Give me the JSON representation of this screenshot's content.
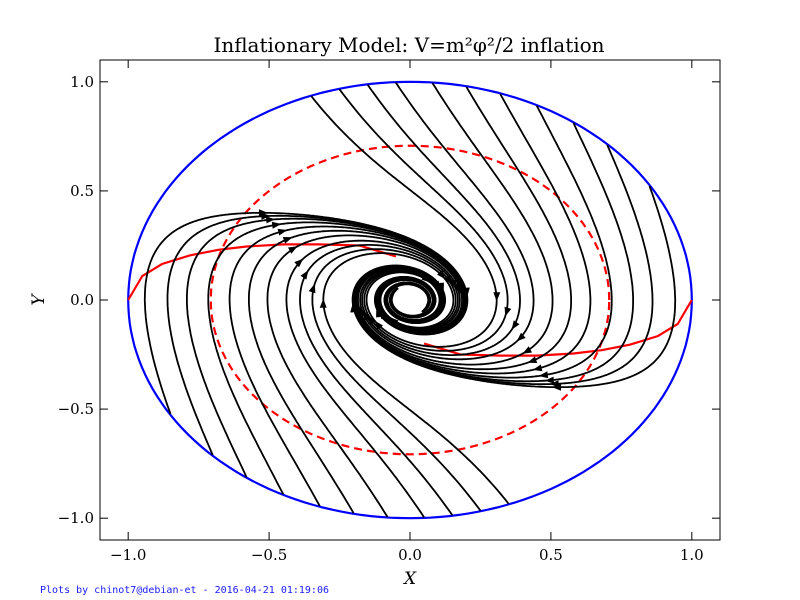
{
  "chart_data": {
    "type": "line",
    "title": "Inflationary Model: V=m²φ²/2 inflation",
    "xlabel": "X",
    "ylabel": "Y",
    "xlim": [
      -1.1,
      1.1
    ],
    "ylim": [
      -1.1,
      1.1
    ],
    "xticks": [
      -1.0,
      -0.5,
      0.0,
      0.5,
      1.0
    ],
    "yticks": [
      -1.0,
      -0.5,
      0.0,
      0.5,
      1.0
    ],
    "xtick_labels": [
      "−1.0",
      "−0.5",
      "0.0",
      "0.5",
      "1.0"
    ],
    "ytick_labels": [
      "−1.0",
      "−0.5",
      "0.0",
      "0.5",
      "1.0"
    ],
    "grid": false,
    "series": [
      {
        "kind": "boundary-circle",
        "color": "#0000ff",
        "style": "solid",
        "radius": 1.0
      },
      {
        "kind": "dashed-circle",
        "color": "#ff0000",
        "style": "dashed",
        "radius": 0.707
      },
      {
        "kind": "attractor-upper-left",
        "color": "#ff0000",
        "style": "solid",
        "x": [
          -1.0,
          -0.95,
          -0.88,
          -0.78,
          -0.68,
          -0.58,
          -0.45,
          -0.32,
          -0.18,
          -0.05
        ],
        "y": [
          0.0,
          0.11,
          0.165,
          0.205,
          0.23,
          0.245,
          0.255,
          0.255,
          0.25,
          0.2
        ]
      },
      {
        "kind": "attractor-lower-right",
        "color": "#ff0000",
        "style": "solid",
        "x": [
          1.0,
          0.95,
          0.88,
          0.78,
          0.68,
          0.58,
          0.45,
          0.32,
          0.18,
          0.05
        ],
        "y": [
          0.0,
          -0.11,
          -0.165,
          -0.205,
          -0.23,
          -0.245,
          -0.255,
          -0.255,
          -0.25,
          -0.2
        ]
      }
    ],
    "trajectory_colors": "#000000",
    "trajectories_top_start": [
      -0.35,
      -0.25,
      -0.15,
      -0.05,
      0.08,
      0.2,
      0.32,
      0.45,
      0.58,
      0.7,
      0.85
    ],
    "trajectories_bottom_start": [
      0.35,
      0.25,
      0.15,
      0.05,
      -0.08,
      -0.2,
      -0.32,
      -0.45,
      -0.58,
      -0.7,
      -0.85
    ]
  },
  "footer": "Plots by chinot7@debian-et - 2016-04-21 01:19:06"
}
